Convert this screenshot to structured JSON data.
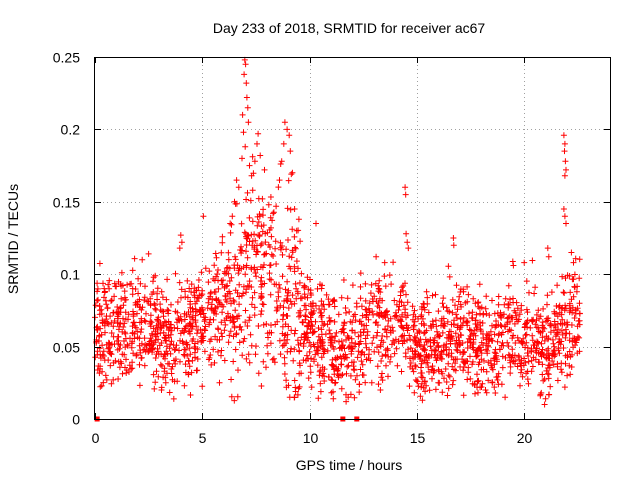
{
  "chart_data": {
    "type": "scatter",
    "title": "Day 233 of 2018, SRMTID for receiver ac67",
    "xlabel": "GPS time / hours",
    "ylabel": "SRMTID / TECUs",
    "xlim": [
      0,
      24
    ],
    "ylim": [
      0,
      0.25
    ],
    "grid": true,
    "marker": "+",
    "series_color": "#ff0000",
    "x_ticks": [
      0,
      5,
      10,
      15,
      20
    ],
    "x_tick_labels": [
      "0",
      "5",
      "10",
      "15",
      "20"
    ],
    "y_ticks": [
      0,
      0.05,
      0.1,
      0.15,
      0.2,
      0.25
    ],
    "y_tick_labels": [
      "0",
      "0.05",
      "0.1",
      "0.15",
      "0.2",
      "0.25"
    ],
    "trend": [
      [
        0.0,
        0.068
      ],
      [
        0.5,
        0.062
      ],
      [
        1.0,
        0.064
      ],
      [
        1.5,
        0.066
      ],
      [
        2.0,
        0.065
      ],
      [
        2.5,
        0.062
      ],
      [
        3.0,
        0.058
      ],
      [
        3.5,
        0.055
      ],
      [
        4.0,
        0.054
      ],
      [
        4.5,
        0.06
      ],
      [
        5.0,
        0.068
      ],
      [
        5.5,
        0.078
      ],
      [
        6.0,
        0.082
      ],
      [
        6.5,
        0.078
      ],
      [
        7.0,
        0.098
      ],
      [
        7.5,
        0.11
      ],
      [
        8.0,
        0.095
      ],
      [
        8.5,
        0.09
      ],
      [
        9.0,
        0.08
      ],
      [
        9.5,
        0.07
      ],
      [
        10.0,
        0.066
      ],
      [
        10.5,
        0.058
      ],
      [
        11.0,
        0.052
      ],
      [
        11.5,
        0.048
      ],
      [
        12.0,
        0.052
      ],
      [
        12.5,
        0.06
      ],
      [
        13.0,
        0.066
      ],
      [
        13.5,
        0.068
      ],
      [
        14.0,
        0.066
      ],
      [
        14.5,
        0.062
      ],
      [
        15.0,
        0.052
      ],
      [
        15.5,
        0.05
      ],
      [
        16.0,
        0.052
      ],
      [
        16.5,
        0.056
      ],
      [
        17.0,
        0.06
      ],
      [
        17.5,
        0.055
      ],
      [
        18.0,
        0.052
      ],
      [
        18.5,
        0.05
      ],
      [
        19.0,
        0.052
      ],
      [
        19.5,
        0.06
      ],
      [
        20.0,
        0.062
      ],
      [
        20.5,
        0.054
      ],
      [
        21.0,
        0.046
      ],
      [
        21.5,
        0.052
      ],
      [
        22.0,
        0.065
      ],
      [
        22.6,
        0.072
      ]
    ],
    "spread": 0.018,
    "n_points": 2200,
    "x_range": [
      0.0,
      22.6
    ],
    "peaks": [
      {
        "x": 6.98,
        "y": 0.248
      },
      {
        "x": 7.02,
        "y": 0.245
      },
      {
        "x": 6.95,
        "y": 0.238
      },
      {
        "x": 7.05,
        "y": 0.232
      },
      {
        "x": 7.08,
        "y": 0.222
      },
      {
        "x": 7.12,
        "y": 0.215
      },
      {
        "x": 6.88,
        "y": 0.21
      },
      {
        "x": 7.15,
        "y": 0.205
      },
      {
        "x": 6.92,
        "y": 0.198
      },
      {
        "x": 7.0,
        "y": 0.188
      },
      {
        "x": 6.85,
        "y": 0.18
      },
      {
        "x": 7.2,
        "y": 0.175
      },
      {
        "x": 7.6,
        "y": 0.197
      },
      {
        "x": 7.55,
        "y": 0.19
      },
      {
        "x": 7.7,
        "y": 0.182
      },
      {
        "x": 7.45,
        "y": 0.178
      },
      {
        "x": 7.9,
        "y": 0.172
      },
      {
        "x": 7.3,
        "y": 0.168
      },
      {
        "x": 8.85,
        "y": 0.205
      },
      {
        "x": 8.95,
        "y": 0.2
      },
      {
        "x": 9.05,
        "y": 0.196
      },
      {
        "x": 8.8,
        "y": 0.19
      },
      {
        "x": 9.1,
        "y": 0.185
      },
      {
        "x": 8.7,
        "y": 0.178
      },
      {
        "x": 9.2,
        "y": 0.17
      },
      {
        "x": 8.6,
        "y": 0.165
      },
      {
        "x": 6.6,
        "y": 0.165
      },
      {
        "x": 6.7,
        "y": 0.16
      },
      {
        "x": 6.5,
        "y": 0.15
      },
      {
        "x": 7.35,
        "y": 0.158
      },
      {
        "x": 7.8,
        "y": 0.152
      },
      {
        "x": 8.1,
        "y": 0.148
      },
      {
        "x": 8.3,
        "y": 0.142
      },
      {
        "x": 9.3,
        "y": 0.145
      },
      {
        "x": 9.5,
        "y": 0.138
      },
      {
        "x": 6.4,
        "y": 0.14
      },
      {
        "x": 6.3,
        "y": 0.135
      },
      {
        "x": 8.2,
        "y": 0.132
      },
      {
        "x": 9.4,
        "y": 0.13
      },
      {
        "x": 10.3,
        "y": 0.135
      },
      {
        "x": 5.05,
        "y": 0.14
      },
      {
        "x": 4.0,
        "y": 0.127
      },
      {
        "x": 4.05,
        "y": 0.122
      },
      {
        "x": 14.45,
        "y": 0.16
      },
      {
        "x": 14.48,
        "y": 0.155
      },
      {
        "x": 14.5,
        "y": 0.128
      },
      {
        "x": 14.55,
        "y": 0.122
      },
      {
        "x": 14.6,
        "y": 0.118
      },
      {
        "x": 16.7,
        "y": 0.125
      },
      {
        "x": 16.72,
        "y": 0.12
      },
      {
        "x": 21.85,
        "y": 0.196
      },
      {
        "x": 21.9,
        "y": 0.19
      },
      {
        "x": 21.88,
        "y": 0.185
      },
      {
        "x": 21.92,
        "y": 0.178
      },
      {
        "x": 21.95,
        "y": 0.172
      },
      {
        "x": 21.9,
        "y": 0.168
      },
      {
        "x": 21.85,
        "y": 0.145
      },
      {
        "x": 21.9,
        "y": 0.14
      },
      {
        "x": 21.95,
        "y": 0.135
      },
      {
        "x": 21.1,
        "y": 0.118
      },
      {
        "x": 21.15,
        "y": 0.112
      },
      {
        "x": 22.2,
        "y": 0.115
      },
      {
        "x": 22.3,
        "y": 0.108
      },
      {
        "x": 2.5,
        "y": 0.114
      },
      {
        "x": 2.2,
        "y": 0.11
      },
      {
        "x": 3.95,
        "y": 0.118
      },
      {
        "x": 13.1,
        "y": 0.112
      },
      {
        "x": 13.5,
        "y": 0.108
      },
      {
        "x": 19.5,
        "y": 0.106
      },
      {
        "x": 20.0,
        "y": 0.108
      }
    ],
    "lows": [
      {
        "x": 0.55,
        "y": 0.027
      },
      {
        "x": 0.85,
        "y": 0.027
      },
      {
        "x": 3.1,
        "y": 0.02
      },
      {
        "x": 3.3,
        "y": 0.025
      },
      {
        "x": 5.8,
        "y": 0.025
      },
      {
        "x": 9.3,
        "y": 0.015
      },
      {
        "x": 9.35,
        "y": 0.019
      },
      {
        "x": 10.1,
        "y": 0.022
      },
      {
        "x": 11.7,
        "y": 0.012
      },
      {
        "x": 11.8,
        "y": 0.015
      },
      {
        "x": 12.9,
        "y": 0.025
      },
      {
        "x": 13.3,
        "y": 0.02
      },
      {
        "x": 15.2,
        "y": 0.022
      },
      {
        "x": 16.0,
        "y": 0.025
      },
      {
        "x": 17.8,
        "y": 0.022
      },
      {
        "x": 18.2,
        "y": 0.02
      },
      {
        "x": 18.8,
        "y": 0.024
      },
      {
        "x": 20.8,
        "y": 0.018
      },
      {
        "x": 20.95,
        "y": 0.01
      },
      {
        "x": 21.0,
        "y": 0.014
      },
      {
        "x": 21.9,
        "y": 0.022
      },
      {
        "x": 22.0,
        "y": 0.03
      }
    ],
    "gaps": [
      0.1,
      11.55,
      12.2
    ]
  }
}
